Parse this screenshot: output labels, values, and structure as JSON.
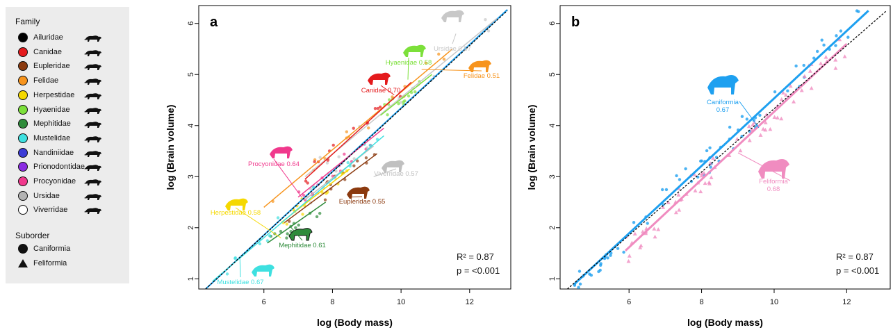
{
  "legend": {
    "family_title": "Family",
    "families": [
      {
        "name": "Ailuridae",
        "color": "#000000",
        "icon": "red-panda-icon"
      },
      {
        "name": "Canidae",
        "color": "#e41a1c",
        "icon": "fox-icon"
      },
      {
        "name": "Eupleridae",
        "color": "#8b3a0f",
        "icon": "fossa-icon"
      },
      {
        "name": "Felidae",
        "color": "#f7941d",
        "icon": "cat-icon"
      },
      {
        "name": "Herpestidae",
        "color": "#f5d800",
        "icon": "mongoose-icon"
      },
      {
        "name": "Hyaenidae",
        "color": "#7ce03a",
        "icon": "hyena-icon"
      },
      {
        "name": "Mephitidae",
        "color": "#2e8b3a",
        "icon": "skunk-icon"
      },
      {
        "name": "Mustelidae",
        "color": "#3ee0e0",
        "icon": "otter-icon"
      },
      {
        "name": "Nandiniidae",
        "color": "#3b3bd6",
        "icon": "palm-civet-icon"
      },
      {
        "name": "Prionodontidae",
        "color": "#8a2be2",
        "icon": "linsang-icon"
      },
      {
        "name": "Procyonidae",
        "color": "#f0388c",
        "icon": "raccoon-icon"
      },
      {
        "name": "Ursidae",
        "color": "#b3b3b3",
        "icon": "bear-icon"
      },
      {
        "name": "Viverridae",
        "color": "#ffffff",
        "icon": "civet-icon"
      }
    ],
    "suborder_title": "Suborder",
    "suborders": [
      {
        "name": "Caniformia",
        "shape": "circle"
      },
      {
        "name": "Feliformia",
        "shape": "triangle"
      }
    ]
  },
  "chart_data": [
    {
      "panel": "a",
      "type": "scatter",
      "xlabel": "log (Body mass)",
      "ylabel": "log (Brain volume)",
      "xlim": [
        4.1,
        13.2
      ],
      "ylim": [
        0.8,
        6.35
      ],
      "xticks": [
        6,
        8,
        10,
        12
      ],
      "yticks": [
        1,
        2,
        3,
        4,
        5,
        6
      ],
      "stats": {
        "r2": "R² = 0.87",
        "p": "p = <0.001"
      },
      "reference_line": {
        "style": "dashed",
        "color": "#000000"
      },
      "overall_fit": {
        "x": [
          4.3,
          13.1
        ],
        "y": [
          0.8,
          6.27
        ],
        "color": "#1ea0f0"
      },
      "series": [
        {
          "name": "Ursidae",
          "label": "Ursidae 0.57",
          "color": "#c8c8c8",
          "fit": {
            "x": [
              7.2,
              12.8
            ],
            "y": [
              3.0,
              6.1
            ]
          }
        },
        {
          "name": "Hyaenidae",
          "label": "Hyaenidae 0.58",
          "color": "#7ce03a",
          "fit": {
            "x": [
              9.4,
              10.9
            ],
            "y": [
              4.2,
              5.0
            ]
          }
        },
        {
          "name": "Felidae",
          "label": "Felidae 0.51",
          "color": "#f7941d",
          "fit": {
            "x": [
              6.0,
              11.5
            ],
            "y": [
              2.4,
              5.5
            ]
          }
        },
        {
          "name": "Canidae",
          "label": "Canidae 0.70",
          "color": "#e41a1c",
          "fit": {
            "x": [
              7.2,
              10.3
            ],
            "y": [
              2.95,
              4.85
            ]
          }
        },
        {
          "name": "Procyonidae",
          "label": "Procyonidae 0.64",
          "color": "#f0388c",
          "fit": {
            "x": [
              7.0,
              9.5
            ],
            "y": [
              2.6,
              3.95
            ]
          }
        },
        {
          "name": "Viverridae",
          "label": "Viverridae 0.57",
          "color": "#c0c0c0",
          "fit": {
            "x": [
              7.2,
              9.2
            ],
            "y": [
              2.55,
              3.6
            ]
          }
        },
        {
          "name": "Eupleridae",
          "label": "Eupleridae 0.55",
          "color": "#8b3a0f",
          "fit": {
            "x": [
              6.6,
              9.3
            ],
            "y": [
              2.1,
              3.45
            ]
          }
        },
        {
          "name": "Herpestidae",
          "label": "Herpestidae 0.58",
          "color": "#f5d800",
          "fit": {
            "x": [
              6.5,
              8.5
            ],
            "y": [
              2.1,
              3.15
            ]
          }
        },
        {
          "name": "Mephitidae",
          "label": "Mephitidae 0.61",
          "color": "#2e8b3a",
          "fit": {
            "x": [
              6.1,
              7.8
            ],
            "y": [
              1.7,
              2.5
            ]
          }
        },
        {
          "name": "Mustelidae",
          "label": "Mustelidae 0.67",
          "color": "#3ee0e0",
          "fit": {
            "x": [
              4.5,
              9.5
            ],
            "y": [
              0.95,
              3.8
            ]
          }
        }
      ]
    },
    {
      "panel": "b",
      "type": "scatter",
      "xlabel": "log (Body mass)",
      "ylabel": "log (Brain volume)",
      "xlim": [
        4.1,
        13.2
      ],
      "ylim": [
        0.8,
        6.35
      ],
      "xticks": [
        6,
        8,
        10,
        12
      ],
      "yticks": [
        1,
        2,
        3,
        4,
        5,
        6
      ],
      "stats": {
        "r2": "R² = 0.87",
        "p": "p = <0.001"
      },
      "reference_line": {
        "style": "dashed",
        "color": "#000000"
      },
      "series": [
        {
          "name": "Caniformia",
          "label_line1": "Caniformia",
          "label_line2": "0.67",
          "color": "#1ea0f0",
          "marker": "circle",
          "fit": {
            "x": [
              4.5,
              12.6
            ],
            "y": [
              0.9,
              6.25
            ]
          }
        },
        {
          "name": "Feliformia",
          "label_line1": "Feliformia",
          "label_line2": "0.68",
          "color": "#f08cc0",
          "marker": "triangle",
          "fit": {
            "x": [
              5.9,
              12.0
            ],
            "y": [
              1.55,
              5.6
            ]
          }
        }
      ]
    }
  ]
}
